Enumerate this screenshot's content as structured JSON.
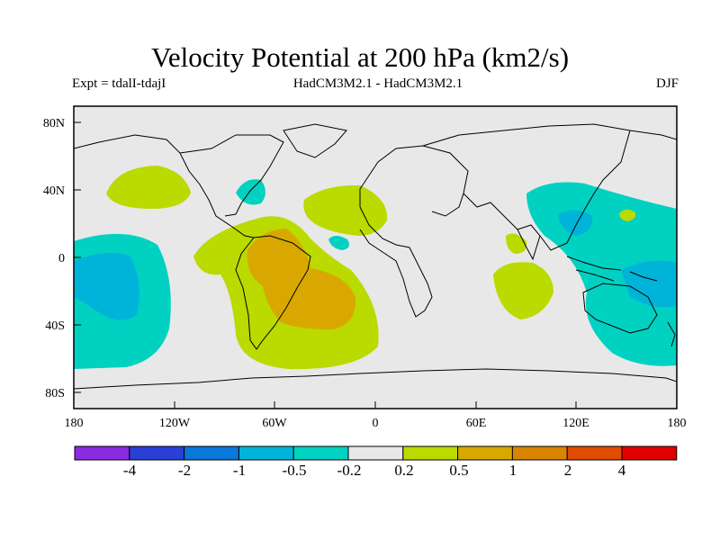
{
  "header": {
    "title": "Velocity Potential at 200 hPa (km2/s)",
    "experiment": "Expt = tdalI-tdajI",
    "models": "HadCM3M2.1 - HadCM3M2.1",
    "season": "DJF"
  },
  "map": {
    "lat_labels": [
      "80N",
      "40N",
      "0",
      "40S",
      "80S"
    ],
    "lon_labels": [
      "180",
      "120W",
      "60W",
      "0",
      "60E",
      "120E",
      "180"
    ],
    "background_color": "#e8e8e8",
    "contours": [
      {
        "name": "subtropical-high-pacific",
        "level": "0.2 to 0.5",
        "color": "#bada00"
      },
      {
        "name": "south-atlantic-positive",
        "level": "0.2 to 0.5",
        "color": "#bada00"
      },
      {
        "name": "north-atlantic-positive",
        "level": "0.2 to 0.5",
        "color": "#bada00"
      },
      {
        "name": "indian-ocean-positive",
        "level": "0.2 to 0.5",
        "color": "#bada00"
      },
      {
        "name": "south-america-maximum",
        "level": "0.5 to 1",
        "color": "#d9a800"
      },
      {
        "name": "east-pacific-negative",
        "level": "-0.5 to -0.2",
        "color": "#00d1c1"
      },
      {
        "name": "east-pacific-core",
        "level": "-1 to -0.5",
        "color": "#00b4d9"
      },
      {
        "name": "maritime-continent-negative",
        "level": "-0.5 to -0.2",
        "color": "#00d1c1"
      },
      {
        "name": "west-pacific-core",
        "level": "-1 to -0.5",
        "color": "#00b4d9"
      }
    ]
  },
  "colorbar": {
    "colors": [
      "#8a2be2",
      "#2a3fd4",
      "#0a78d8",
      "#00b4d9",
      "#00d1c1",
      "#e8e8e8",
      "#bada00",
      "#d9a800",
      "#d98400",
      "#e04c00",
      "#e00000"
    ],
    "labels": [
      "-4",
      "-2",
      "-1",
      "-0.5",
      "-0.2",
      "0.2",
      "0.5",
      "1",
      "2",
      "4"
    ]
  }
}
